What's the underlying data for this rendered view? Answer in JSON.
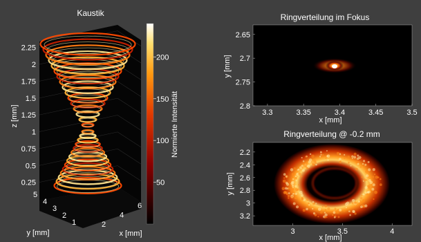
{
  "chart_data": [
    {
      "type": "surface3d",
      "title": "Kaustik",
      "xlabel": "x [mm]",
      "ylabel": "y [mm]",
      "zlabel": "z [mm]",
      "x_ticks": [
        "2",
        "4",
        "6"
      ],
      "y_ticks": [
        "1",
        "2",
        "3",
        "4",
        "5"
      ],
      "z_ticks": [
        "0.25",
        "0.5",
        "0.75",
        "1",
        "1.25",
        "1.5",
        "1.75",
        "2",
        "2.25"
      ],
      "colorbar": {
        "label": "Normierte Intensität",
        "ticks": [
          "50",
          "100",
          "150",
          "200"
        ],
        "range": [
          0,
          240
        ]
      },
      "cones": [
        {
          "name": "upper",
          "z_range": [
            1.1,
            2.3
          ]
        },
        {
          "name": "lower",
          "z_range": [
            0.2,
            1.0
          ]
        }
      ]
    },
    {
      "type": "heatmap",
      "title": "Ringverteilung im Fokus",
      "xlabel": "x [mm]",
      "ylabel": "y [mm]",
      "x_ticks": [
        "3.3",
        "3.35",
        "3.4",
        "3.45",
        "3.5"
      ],
      "y_ticks": [
        "2.65",
        "2.7",
        "2.75",
        "2.8"
      ],
      "xlim": [
        3.28,
        3.5
      ],
      "ylim": [
        2.63,
        2.8
      ],
      "peak": {
        "x": 3.4,
        "y": 2.72
      }
    },
    {
      "type": "heatmap",
      "title": "Ringverteilung @ -0.2 mm",
      "xlabel": "x [mm]",
      "ylabel": "y [mm]",
      "x_ticks": [
        "3",
        "3.5",
        "4"
      ],
      "y_ticks": [
        "2.2",
        "2.4",
        "2.6",
        "2.8",
        "3",
        "3.2"
      ],
      "xlim": [
        2.6,
        4.2
      ],
      "ylim": [
        2.05,
        3.35
      ],
      "ring_center": {
        "x": 3.42,
        "y": 2.72
      }
    }
  ]
}
